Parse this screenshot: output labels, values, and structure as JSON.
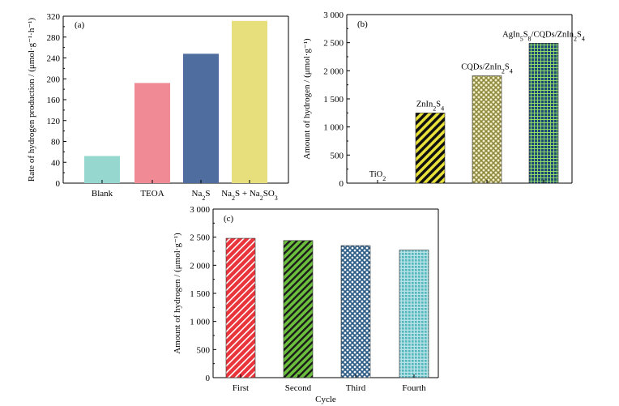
{
  "chart_data": [
    {
      "id": "a",
      "type": "bar",
      "panel_label": "(a)",
      "categories": [
        {
          "label": "Blank",
          "sub": []
        },
        {
          "label": "TEOA",
          "sub": []
        },
        {
          "label": "Na",
          "sub": [
            [
              "2",
              "sub"
            ],
            [
              "S",
              ""
            ]
          ]
        },
        {
          "label": "Na",
          "sub": [
            [
              "2",
              "sub"
            ],
            [
              "S + Na",
              ""
            ],
            [
              "2",
              "sub"
            ],
            [
              "SO",
              ""
            ],
            [
              "3",
              "sub"
            ]
          ]
        }
      ],
      "values": [
        52,
        192,
        248,
        311
      ],
      "colors": [
        "#96d8cf",
        "#f08a94",
        "#4f6e9f",
        "#e6df7b"
      ],
      "ylabel": "Rate of hydrogen production / (μmol·g⁻¹·h⁻¹)",
      "ylim": [
        0,
        320
      ],
      "yticks": [
        0,
        40,
        80,
        120,
        160,
        200,
        240,
        280,
        320
      ],
      "ytick_labels": [
        "0",
        "40",
        "80",
        "120",
        "160",
        "200",
        "240",
        "280",
        "320"
      ],
      "xlabel": ""
    },
    {
      "id": "b",
      "type": "bar",
      "panel_label": "(b)",
      "categories": [
        "TiO2",
        "ZnIn2S4",
        "CQDs/ZnIn2S4",
        "AgIn5S8/CQDs/ZnIn2S4"
      ],
      "category_labels": [
        [
          [
            "TiO",
            ""
          ],
          [
            "2",
            "sub"
          ]
        ],
        [
          [
            "ZnIn",
            ""
          ],
          [
            "2",
            "sub"
          ],
          [
            "S",
            ""
          ],
          [
            "4",
            "sub"
          ]
        ],
        [
          [
            "CQDs/ZnIn",
            ""
          ],
          [
            "2",
            "sub"
          ],
          [
            "S",
            ""
          ],
          [
            "4",
            "sub"
          ]
        ],
        [
          [
            "AgIn",
            ""
          ],
          [
            "5",
            "sub"
          ],
          [
            "S",
            ""
          ],
          [
            "8",
            "sub"
          ],
          [
            "/CQDs/ZnIn",
            ""
          ],
          [
            "2",
            "sub"
          ],
          [
            "S",
            ""
          ],
          [
            "4",
            "sub"
          ]
        ]
      ],
      "values": [
        0,
        1250,
        1910,
        2490
      ],
      "colors": [
        "#ffffff",
        "#e8e23a",
        "#c9c487",
        "#2d5c86"
      ],
      "patterns": [
        "none",
        "diag",
        "cross",
        "grid"
      ],
      "ylabel": "Amount of hydrogen / (μmol·g⁻¹)",
      "ylim": [
        0,
        3000
      ],
      "yticks": [
        0,
        500,
        1000,
        1500,
        2000,
        2500,
        3000
      ],
      "ytick_labels": [
        "0",
        "500",
        "1 000",
        "1 500",
        "2 000",
        "2 500",
        "3 000"
      ],
      "xlabel": ""
    },
    {
      "id": "c",
      "type": "bar",
      "panel_label": "(c)",
      "categories": [
        "First",
        "Second",
        "Third",
        "Fourth"
      ],
      "values": [
        2480,
        2440,
        2350,
        2270
      ],
      "colors": [
        "#e8343a",
        "#6cbf3c",
        "#2d5c86",
        "#7ecbd0"
      ],
      "patterns": [
        "diag-light",
        "diag",
        "cross",
        "grid-light"
      ],
      "ylabel": "Amount of hydrogen / (μmol·g⁻¹)",
      "ylim": [
        0,
        3000
      ],
      "yticks": [
        0,
        500,
        1000,
        1500,
        2000,
        2500,
        3000
      ],
      "ytick_labels": [
        "0",
        "500",
        "1 000",
        "1 500",
        "2 000",
        "2 500",
        "3 000"
      ],
      "xlabel": "Cycle"
    }
  ]
}
